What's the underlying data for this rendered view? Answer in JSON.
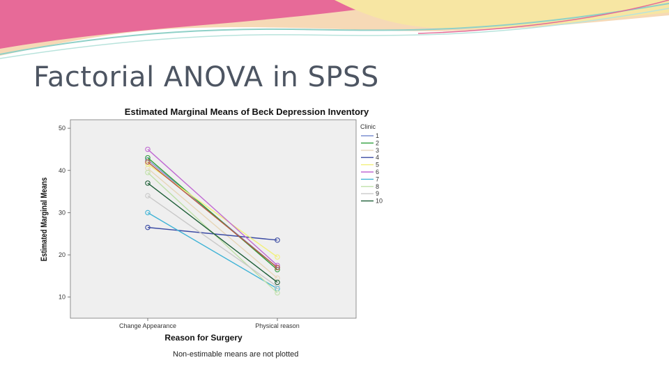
{
  "slide": {
    "title": "Factorial ANOVA in SPSS"
  },
  "colors": {
    "title_text": "#4d5562",
    "plot_background": "#efefef",
    "banner_pink": "#e46a96",
    "banner_orange": "#f2b784",
    "banner_yellow": "#f7e9a8",
    "banner_teal": "#8fd0c7"
  },
  "chart_data": {
    "type": "line",
    "title": "Estimated Marginal Means of Beck Depression Inventory",
    "xlabel": "Reason for Surgery",
    "ylabel": "Estimated Marginal Means",
    "categories": [
      "Change Appearance",
      "Physical reason"
    ],
    "ylim": [
      5,
      52
    ],
    "yticks": [
      "10",
      "20",
      "30",
      "40",
      "50"
    ],
    "legend_title": "Clinic",
    "legend_position": "right",
    "footnote": "Non-estimable means are not plotted",
    "series": [
      {
        "name": "1",
        "values": [
          42.5,
          17.0
        ],
        "color": "#7b8fd1"
      },
      {
        "name": "2",
        "values": [
          43.0,
          16.5
        ],
        "color": "#2e9e3a"
      },
      {
        "name": "3",
        "values": [
          40.5,
          14.5
        ],
        "color": "#e7d6b8"
      },
      {
        "name": "4",
        "values": [
          26.5,
          23.5
        ],
        "color": "#3a4aa3"
      },
      {
        "name": "5",
        "values": [
          41.5,
          19.5
        ],
        "color": "#f2f07a"
      },
      {
        "name": "6",
        "values": [
          45.0,
          17.5
        ],
        "color": "#c06ad3"
      },
      {
        "name": "7",
        "values": [
          30.0,
          12.0
        ],
        "color": "#3fb3d6"
      },
      {
        "name": "8",
        "values": [
          39.5,
          11.0
        ],
        "color": "#bfe0a8"
      },
      {
        "name": "9",
        "values": [
          34.0,
          12.5
        ],
        "color": "#c9c9c9"
      },
      {
        "name": "10",
        "values": [
          37.0,
          13.5
        ],
        "color": "#1d5e36"
      },
      {
        "name": "",
        "values": [
          42.0,
          17.0
        ],
        "color": "#b8573f"
      }
    ]
  }
}
